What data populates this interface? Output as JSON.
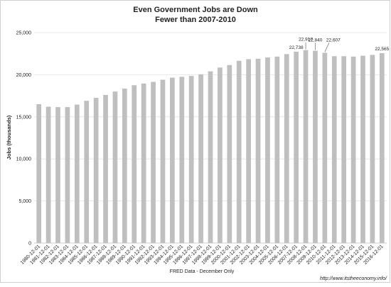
{
  "chart_data": {
    "type": "bar",
    "title": "Even Government Jobs are Down",
    "subtitle": "Fewer than 2007-2010",
    "ylabel": "Jobs (thousands)",
    "xlabel": "FRED Data - December Only",
    "ylim": [
      0,
      25000
    ],
    "yticks": [
      "0",
      "5,000",
      "10,000",
      "15,000",
      "20,000",
      "25,000"
    ],
    "grid": true,
    "color": "#bfbfbf",
    "categories": [
      "1980-12-01",
      "1981-12-01",
      "1982-12-01",
      "1983-12-01",
      "1984-12-01",
      "1985-12-01",
      "1986-12-01",
      "1987-12-01",
      "1988-12-01",
      "1989-12-01",
      "1990-12-01",
      "1991-12-01",
      "1992-12-01",
      "1993-12-01",
      "1994-12-01",
      "1995-12-01",
      "1996-12-01",
      "1997-12-01",
      "1998-12-01",
      "1999-12-01",
      "2000-12-01",
      "2001-12-01",
      "2002-12-01",
      "2003-12-01",
      "2004-12-01",
      "2005-12-01",
      "2006-12-01",
      "2007-12-01",
      "2008-12-01",
      "2009-12-01",
      "2010-12-01",
      "2011-12-01",
      "2012-12-01",
      "2013-12-01",
      "2014-12-01",
      "2015-12-01",
      "2016-12-01"
    ],
    "values": [
      16500,
      16200,
      16150,
      16150,
      16450,
      16900,
      17250,
      17600,
      18000,
      18350,
      18750,
      18950,
      19150,
      19400,
      19650,
      19750,
      19850,
      20050,
      20400,
      20850,
      21150,
      21650,
      21850,
      21900,
      22050,
      22150,
      22450,
      22738,
      22917,
      22840,
      22607,
      22200,
      22200,
      22150,
      22250,
      22350,
      22565
    ],
    "data_labels": [
      {
        "index": 27,
        "text": "22,738"
      },
      {
        "index": 28,
        "text": "22,917"
      },
      {
        "index": 29,
        "text": "22,840"
      },
      {
        "index": 30,
        "text": "22,607"
      },
      {
        "index": 36,
        "text": "22,565"
      }
    ]
  },
  "footer": {
    "source": "FRED Data - December Only",
    "url": "http://www.itstheeconomy.info/"
  }
}
